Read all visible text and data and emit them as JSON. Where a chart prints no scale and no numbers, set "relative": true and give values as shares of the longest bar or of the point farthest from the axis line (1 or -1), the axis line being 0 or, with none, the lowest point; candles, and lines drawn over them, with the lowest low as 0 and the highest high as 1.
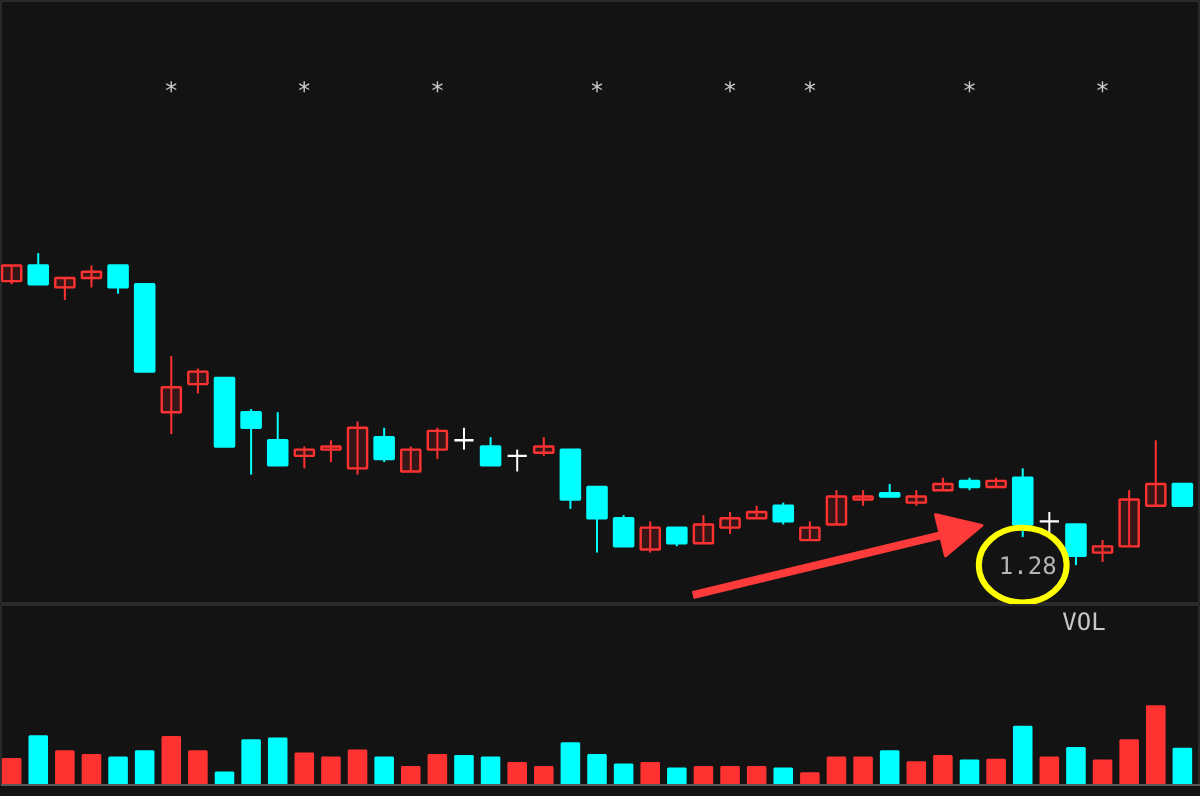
{
  "chart_data": [
    {
      "type": "candlestick",
      "relative": true,
      "categories": [
        null,
        null,
        null,
        null,
        null,
        null,
        null,
        null,
        null,
        null,
        null,
        null,
        null,
        null,
        null,
        null,
        null,
        null,
        null,
        null,
        null,
        null,
        null,
        null,
        null,
        null,
        null,
        null,
        null,
        null,
        null,
        null,
        null,
        null,
        null,
        null,
        null,
        null,
        null,
        null,
        null,
        null,
        null,
        null,
        null
      ],
      "ohlc": [
        [
          0.91,
          0.96,
          0.9,
          0.96
        ],
        [
          0.96,
          1.0,
          0.9,
          0.9
        ],
        [
          0.89,
          0.92,
          0.85,
          0.92
        ],
        [
          0.92,
          0.96,
          0.89,
          0.94
        ],
        [
          0.96,
          0.96,
          0.87,
          0.89
        ],
        [
          0.9,
          0.9,
          0.62,
          0.62
        ],
        [
          0.49,
          0.67,
          0.42,
          0.57
        ],
        [
          0.58,
          0.63,
          0.55,
          0.62
        ],
        [
          0.6,
          0.6,
          0.38,
          0.38
        ],
        [
          0.49,
          0.5,
          0.29,
          0.44
        ],
        [
          0.4,
          0.49,
          0.32,
          0.32
        ],
        [
          0.35,
          0.38,
          0.31,
          0.37
        ],
        [
          0.37,
          0.4,
          0.33,
          0.38
        ],
        [
          0.31,
          0.46,
          0.29,
          0.44
        ],
        [
          0.41,
          0.44,
          0.33,
          0.34
        ],
        [
          0.3,
          0.38,
          0.3,
          0.37
        ],
        [
          0.37,
          0.44,
          0.34,
          0.43
        ],
        [
          0.4,
          0.44,
          0.37,
          0.4
        ],
        [
          0.38,
          0.41,
          0.32,
          0.32
        ],
        [
          0.35,
          0.37,
          0.3,
          0.35
        ],
        [
          0.36,
          0.41,
          0.35,
          0.38
        ],
        [
          0.37,
          0.37,
          0.18,
          0.21
        ],
        [
          0.25,
          0.25,
          0.04,
          0.15
        ],
        [
          0.15,
          0.16,
          0.06,
          0.06
        ],
        [
          0.05,
          0.14,
          0.04,
          0.12
        ],
        [
          0.12,
          0.12,
          0.06,
          0.07
        ],
        [
          0.07,
          0.16,
          0.07,
          0.13
        ],
        [
          0.12,
          0.17,
          0.1,
          0.15
        ],
        [
          0.15,
          0.19,
          0.15,
          0.17
        ],
        [
          0.19,
          0.2,
          0.13,
          0.14
        ],
        [
          0.08,
          0.14,
          0.08,
          0.12
        ],
        [
          0.13,
          0.24,
          0.13,
          0.22
        ],
        [
          0.21,
          0.24,
          0.19,
          0.22
        ],
        [
          0.23,
          0.26,
          0.22,
          0.22
        ],
        [
          0.2,
          0.24,
          0.19,
          0.22
        ],
        [
          0.24,
          0.28,
          0.24,
          0.26
        ],
        [
          0.27,
          0.28,
          0.24,
          0.25
        ],
        [
          0.25,
          0.28,
          0.25,
          0.27
        ],
        [
          0.28,
          0.31,
          0.09,
          0.13
        ],
        [
          0.14,
          0.17,
          0.1,
          0.14
        ],
        [
          0.13,
          0.13,
          0.0,
          0.03
        ],
        [
          0.04,
          0.08,
          0.01,
          0.06
        ],
        [
          0.06,
          0.24,
          0.06,
          0.21
        ],
        [
          0.19,
          0.4,
          0.19,
          0.26
        ],
        [
          0.26,
          0.26,
          0.19,
          0.19
        ]
      ],
      "colors": [
        "#ff3232",
        "#00ffff",
        "#ff3232",
        "#ff3232",
        "#00ffff",
        "#00ffff",
        "#ff3232",
        "#ff3232",
        "#00ffff",
        "#00ffff",
        "#00ffff",
        "#ff3232",
        "#ff3232",
        "#ff3232",
        "#00ffff",
        "#ff3232",
        "#ff3232",
        "#ffffff",
        "#00ffff",
        "#ffffff",
        "#ff3232",
        "#00ffff",
        "#00ffff",
        "#00ffff",
        "#ff3232",
        "#00ffff",
        "#ff3232",
        "#ff3232",
        "#ff3232",
        "#00ffff",
        "#ff3232",
        "#ff3232",
        "#ff3232",
        "#00ffff",
        "#ff3232",
        "#ff3232",
        "#00ffff",
        "#ff3232",
        "#00ffff",
        "#ffffff",
        "#00ffff",
        "#ff3232",
        "#ff3232",
        "#ff3232",
        "#00ffff"
      ],
      "annotations": [
        "*",
        "*",
        "*",
        "*",
        "*",
        "*",
        "*",
        "*",
        {
          "text": "1.28"
        }
      ]
    },
    {
      "type": "bar",
      "relative": true,
      "categories": [
        null,
        null,
        null,
        null,
        null,
        null,
        null,
        null,
        null,
        null,
        null,
        null,
        null,
        null,
        null,
        null,
        null,
        null,
        null,
        null,
        null,
        null,
        null,
        null,
        null,
        null,
        null,
        null,
        null,
        null,
        null,
        null,
        null,
        null,
        null,
        null,
        null,
        null,
        null,
        null,
        null,
        null,
        null,
        null,
        null
      ],
      "values": [
        0.33,
        0.62,
        0.43,
        0.38,
        0.35,
        0.43,
        0.61,
        0.43,
        0.16,
        0.57,
        0.59,
        0.4,
        0.35,
        0.44,
        0.35,
        0.23,
        0.38,
        0.37,
        0.35,
        0.28,
        0.23,
        0.53,
        0.38,
        0.26,
        0.28,
        0.21,
        0.23,
        0.23,
        0.23,
        0.21,
        0.15,
        0.35,
        0.35,
        0.43,
        0.29,
        0.37,
        0.31,
        0.32,
        0.74,
        0.35,
        0.47,
        0.31,
        0.57,
        1.0,
        0.46
      ],
      "colors": [
        "#ff3232",
        "#00ffff",
        "#ff3232",
        "#ff3232",
        "#00ffff",
        "#00ffff",
        "#ff3232",
        "#ff3232",
        "#00ffff",
        "#00ffff",
        "#00ffff",
        "#ff3232",
        "#ff3232",
        "#ff3232",
        "#00ffff",
        "#ff3232",
        "#ff3232",
        "#00ffff",
        "#00ffff",
        "#ff3232",
        "#ff3232",
        "#00ffff",
        "#00ffff",
        "#00ffff",
        "#ff3232",
        "#00ffff",
        "#ff3232",
        "#ff3232",
        "#ff3232",
        "#00ffff",
        "#ff3232",
        "#ff3232",
        "#ff3232",
        "#00ffff",
        "#ff3232",
        "#ff3232",
        "#00ffff",
        "#ff3232",
        "#00ffff",
        "#ff3232",
        "#00ffff",
        "#ff3232",
        "#ff3232",
        "#ff3232",
        "#00ffff"
      ],
      "annotations": [
        "VOL"
      ]
    }
  ]
}
